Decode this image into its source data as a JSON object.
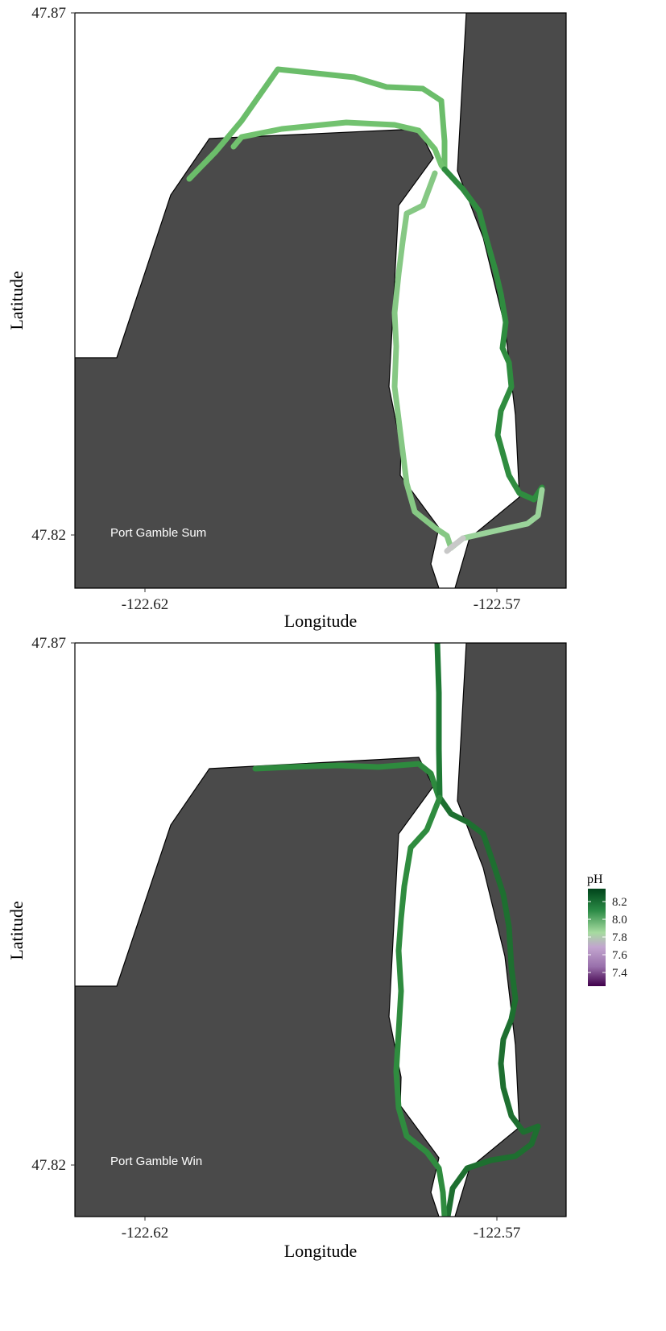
{
  "panels": [
    {
      "label": "Port Gamble Sum",
      "xlabel": "Longitude",
      "ylabel": "Latitude",
      "x_ticks": [
        "-122.62",
        "-122.57"
      ],
      "y_ticks": [
        "47.87",
        "47.82"
      ]
    },
    {
      "label": "Port Gamble Win",
      "xlabel": "Longitude",
      "ylabel": "Latitude",
      "x_ticks": [
        "-122.62",
        "-122.57"
      ],
      "y_ticks": [
        "47.87",
        "47.82"
      ]
    }
  ],
  "legend": {
    "title": "pH",
    "ticks": [
      "8.2",
      "8.0",
      "7.8",
      "7.6",
      "7.4"
    ],
    "colors": {
      "high": "#00441b",
      "mid_high": "#5aae61",
      "mid": "#d9f0d3",
      "mid_low": "#c2a5cf",
      "low": "#40004b"
    }
  },
  "colors": {
    "land": "#4a4a4a",
    "water": "#ffffff",
    "track_summer": "#6cbf6c",
    "track_winter": "#1f7a35"
  }
}
